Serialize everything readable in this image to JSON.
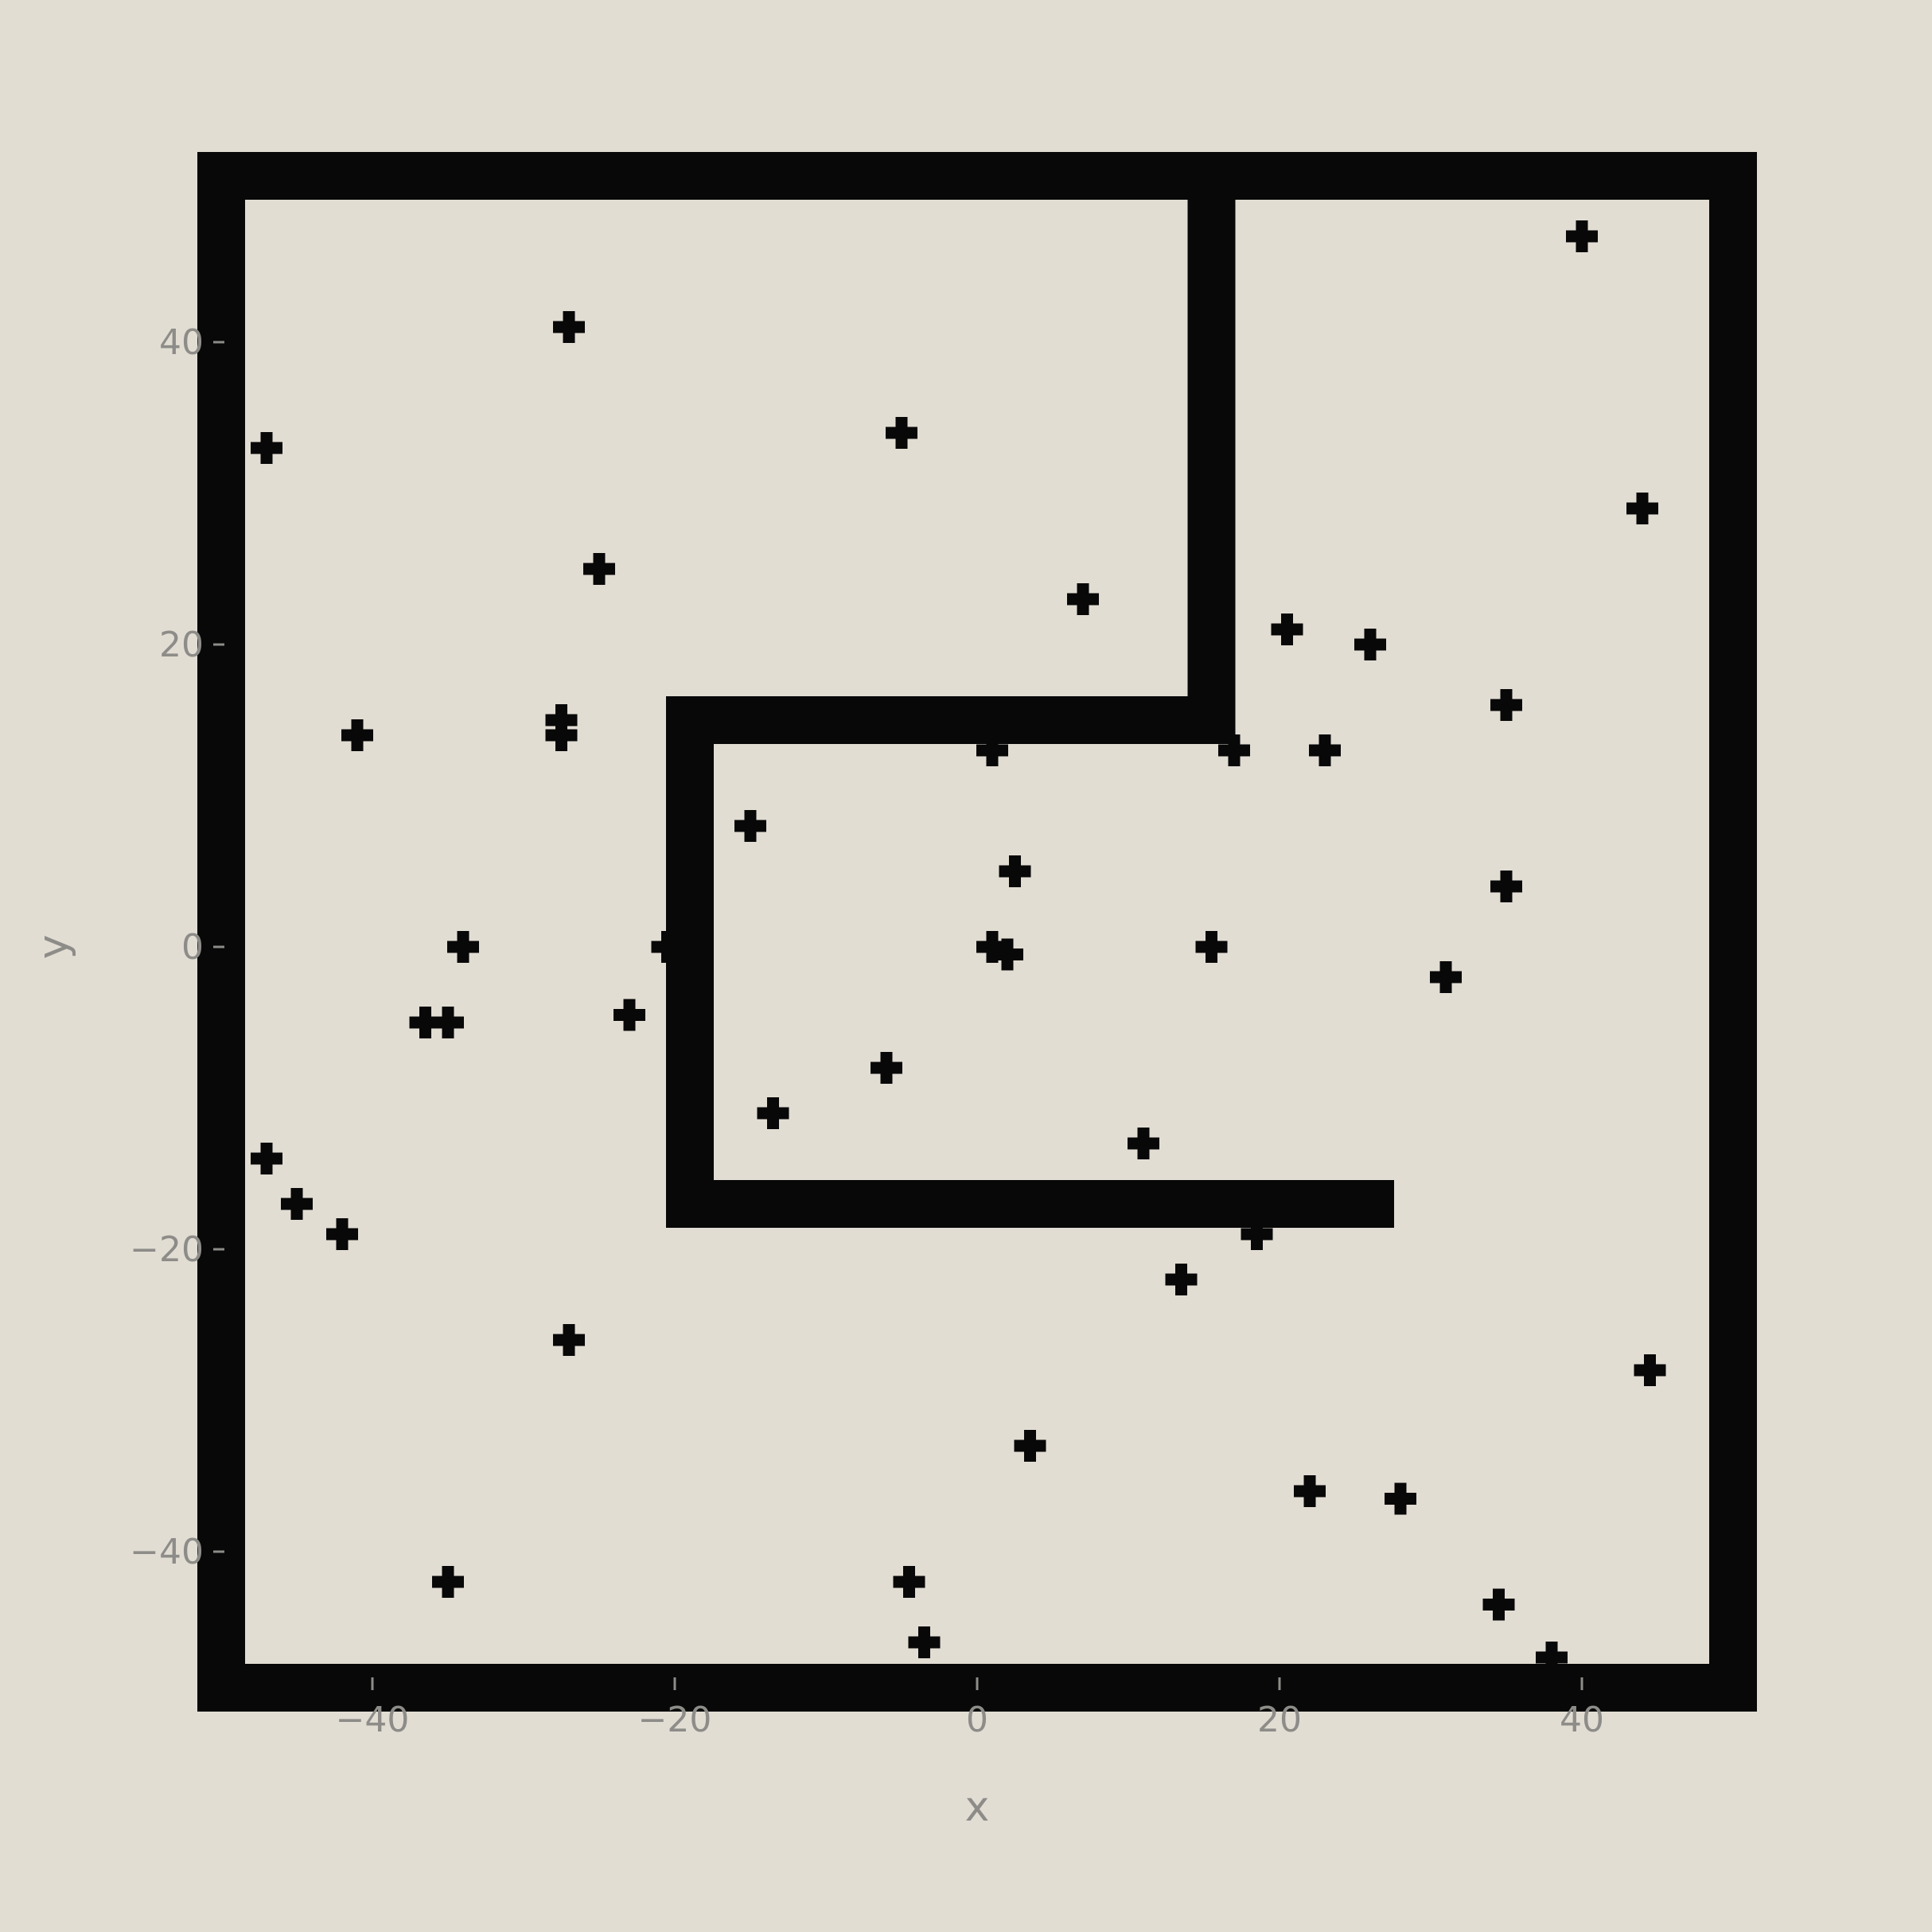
{
  "chart_data": {
    "type": "scatter",
    "title": "",
    "xlabel": "x",
    "ylabel": "y",
    "xlim": [
      -50,
      50
    ],
    "ylim": [
      -50,
      50
    ],
    "xticks": [
      -40,
      -20,
      0,
      20,
      40
    ],
    "yticks": [
      -40,
      -20,
      0,
      20,
      40
    ],
    "xtick_labels": [
      "−40",
      "−20",
      "0",
      "20",
      "40"
    ],
    "ytick_labels": [
      "−40",
      "−20",
      "0",
      "20",
      "40"
    ],
    "marker": "plus",
    "grid": false,
    "colors": {
      "background": "#e2ddd3",
      "wall": "#080808",
      "marker": "#080808",
      "text": "#8d8c88"
    },
    "walls": [
      {
        "name": "outer-boundary",
        "points": [
          [
            -50,
            51
          ],
          [
            50,
            51
          ],
          [
            50,
            -49
          ],
          [
            -50,
            -49
          ]
        ]
      },
      {
        "name": "inner-wall",
        "points": [
          [
            15.5,
            49
          ],
          [
            15.5,
            15
          ],
          [
            -19,
            15
          ],
          [
            -19,
            -17
          ],
          [
            26,
            -17
          ]
        ]
      }
    ],
    "points": [
      {
        "x": -27,
        "y": 41
      },
      {
        "x": 40,
        "y": 47
      },
      {
        "x": -47,
        "y": 33
      },
      {
        "x": -5,
        "y": 34
      },
      {
        "x": 44,
        "y": 29
      },
      {
        "x": -25,
        "y": 25
      },
      {
        "x": 7,
        "y": 23
      },
      {
        "x": 20.5,
        "y": 21
      },
      {
        "x": 26,
        "y": 20
      },
      {
        "x": -41,
        "y": 14
      },
      {
        "x": -27.5,
        "y": 15
      },
      {
        "x": -27.5,
        "y": 14
      },
      {
        "x": 35,
        "y": 16
      },
      {
        "x": 1,
        "y": 13
      },
      {
        "x": 17,
        "y": 13
      },
      {
        "x": 23,
        "y": 13
      },
      {
        "x": -15,
        "y": 8
      },
      {
        "x": 2.5,
        "y": 5
      },
      {
        "x": 35,
        "y": 4
      },
      {
        "x": -34,
        "y": 0
      },
      {
        "x": -20.5,
        "y": 0
      },
      {
        "x": 1,
        "y": 0
      },
      {
        "x": 2,
        "y": -0.5
      },
      {
        "x": 15.5,
        "y": 0
      },
      {
        "x": 31,
        "y": -2
      },
      {
        "x": -36.5,
        "y": -5
      },
      {
        "x": -35,
        "y": -5
      },
      {
        "x": -23,
        "y": -4.5
      },
      {
        "x": -6,
        "y": -8
      },
      {
        "x": -13.5,
        "y": -11
      },
      {
        "x": -47,
        "y": -14
      },
      {
        "x": 11,
        "y": -13
      },
      {
        "x": -45,
        "y": -17
      },
      {
        "x": -42,
        "y": -19
      },
      {
        "x": 18.5,
        "y": -19
      },
      {
        "x": 13.5,
        "y": -22
      },
      {
        "x": -27,
        "y": -26
      },
      {
        "x": 44.5,
        "y": -28
      },
      {
        "x": 3.5,
        "y": -33
      },
      {
        "x": 22,
        "y": -36
      },
      {
        "x": 28,
        "y": -36.5
      },
      {
        "x": -35,
        "y": -42
      },
      {
        "x": -4.5,
        "y": -42
      },
      {
        "x": 34.5,
        "y": -43.5
      },
      {
        "x": -3.5,
        "y": -46
      },
      {
        "x": 38,
        "y": -47
      }
    ]
  }
}
